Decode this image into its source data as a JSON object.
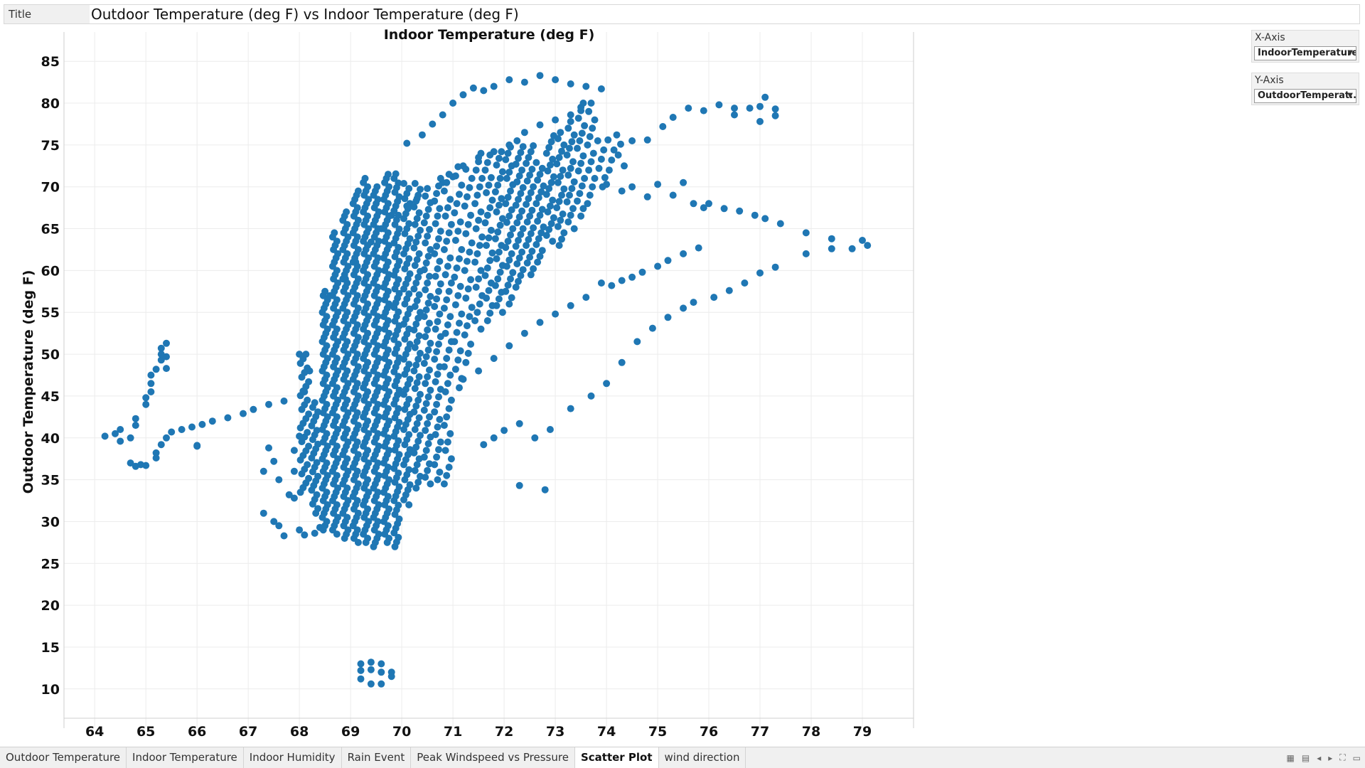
{
  "title_bar": {
    "tag": "Title",
    "worksheet_title": "Outdoor Temperature (deg F) vs Indoor Temperature (deg F)"
  },
  "controls": {
    "x_axis": {
      "label": "X-Axis",
      "value": "IndoorTemperature"
    },
    "y_axis": {
      "label": "Y-Axis",
      "value": "OutdoorTemperat..."
    }
  },
  "tabs": [
    {
      "label": "Outdoor Temperature",
      "active": false
    },
    {
      "label": "Indoor Temperature",
      "active": false
    },
    {
      "label": "Indoor Humidity",
      "active": false
    },
    {
      "label": "Rain Event",
      "active": false
    },
    {
      "label": "Peak Windspeed vs Pressure",
      "active": false
    },
    {
      "label": "Scatter Plot",
      "active": true
    },
    {
      "label": "wind direction",
      "active": false
    }
  ],
  "tab_controls": [
    "grid-view-icon",
    "list-view-icon",
    "prev-icon",
    "next-icon",
    "fullscreen-icon",
    "share-icon"
  ],
  "colors": {
    "point": "#1f77b4",
    "grid": "#ececec",
    "axis": "#cfcfcf"
  },
  "chart_data": {
    "type": "scatter",
    "xlabel": "Indoor Temperature (deg F)",
    "ylabel": "Outdoor Temperature (deg F)",
    "xlim": [
      63.4,
      80.0
    ],
    "ylim": [
      6.5,
      88.5
    ],
    "x_ticks": [
      64,
      65,
      66,
      67,
      68,
      69,
      70,
      71,
      72,
      73,
      74,
      75,
      76,
      77,
      78,
      79
    ],
    "y_ticks": [
      10,
      15,
      20,
      25,
      30,
      35,
      40,
      45,
      50,
      55,
      60,
      65,
      70,
      75,
      80,
      85
    ],
    "grid": true,
    "series": [
      {
        "points": [
          [
            64.2,
            40.2
          ],
          [
            64.4,
            40.5
          ],
          [
            64.5,
            41.0
          ],
          [
            64.5,
            39.6
          ],
          [
            64.7,
            40.0
          ],
          [
            64.8,
            41.5
          ],
          [
            64.8,
            42.3
          ],
          [
            64.7,
            37.0
          ],
          [
            64.8,
            36.6
          ],
          [
            64.9,
            36.8
          ],
          [
            65.0,
            36.7
          ],
          [
            65.2,
            37.6
          ],
          [
            65.2,
            38.2
          ],
          [
            65.0,
            44.0
          ],
          [
            65.0,
            44.8
          ],
          [
            65.1,
            45.5
          ],
          [
            65.1,
            46.5
          ],
          [
            65.1,
            47.5
          ],
          [
            65.2,
            48.2
          ],
          [
            65.3,
            49.3
          ],
          [
            65.3,
            50.0
          ],
          [
            65.3,
            50.7
          ],
          [
            65.4,
            51.3
          ],
          [
            65.4,
            49.7
          ],
          [
            65.4,
            48.3
          ],
          [
            65.3,
            39.2
          ],
          [
            65.4,
            40.0
          ],
          [
            65.5,
            40.7
          ],
          [
            65.7,
            41.0
          ],
          [
            65.9,
            41.3
          ],
          [
            66.1,
            41.6
          ],
          [
            66.3,
            42.0
          ],
          [
            66.6,
            42.4
          ],
          [
            66.9,
            42.9
          ],
          [
            67.1,
            43.4
          ],
          [
            67.4,
            44.0
          ],
          [
            67.7,
            44.4
          ],
          [
            66.0,
            39.0
          ],
          [
            67.3,
            31.0
          ],
          [
            67.3,
            36.0
          ],
          [
            67.4,
            38.8
          ],
          [
            67.5,
            37.2
          ],
          [
            67.6,
            35.0
          ],
          [
            67.5,
            30.0
          ],
          [
            67.6,
            29.5
          ],
          [
            67.7,
            28.3
          ],
          [
            67.8,
            33.2
          ],
          [
            67.9,
            36.0
          ],
          [
            67.9,
            38.5
          ],
          [
            68.0,
            40.2
          ],
          [
            68.0,
            29.0
          ],
          [
            68.1,
            28.4
          ],
          [
            68.1,
            45.5
          ],
          [
            68.0,
            50.0
          ],
          [
            68.2,
            48.0
          ],
          [
            67.9,
            32.8
          ],
          [
            68.3,
            28.6
          ],
          [
            68.4,
            29.3
          ],
          [
            72.3,
            34.3
          ],
          [
            72.8,
            33.8
          ],
          [
            69.2,
            13.0
          ],
          [
            69.2,
            12.2
          ],
          [
            69.2,
            11.2
          ],
          [
            69.4,
            13.2
          ],
          [
            69.4,
            12.3
          ],
          [
            69.4,
            10.6
          ],
          [
            69.6,
            13.0
          ],
          [
            69.6,
            12.0
          ],
          [
            69.6,
            10.6
          ],
          [
            69.8,
            12.0
          ],
          [
            69.8,
            11.5
          ],
          [
            66.0,
            39.1
          ],
          [
            70.1,
            75.2
          ],
          [
            70.4,
            76.2
          ],
          [
            70.6,
            77.5
          ],
          [
            70.8,
            78.6
          ],
          [
            71.0,
            80.0
          ],
          [
            71.2,
            81.0
          ],
          [
            71.4,
            81.8
          ],
          [
            71.6,
            81.5
          ],
          [
            71.8,
            82.0
          ],
          [
            72.1,
            82.8
          ],
          [
            72.4,
            82.5
          ],
          [
            72.7,
            83.3
          ],
          [
            73.0,
            82.8
          ],
          [
            73.3,
            82.3
          ],
          [
            73.6,
            82.0
          ],
          [
            73.9,
            81.7
          ],
          [
            74.2,
            76.2
          ],
          [
            74.5,
            75.5
          ],
          [
            74.8,
            75.6
          ],
          [
            75.1,
            77.2
          ],
          [
            75.3,
            78.3
          ],
          [
            75.6,
            79.4
          ],
          [
            75.9,
            79.1
          ],
          [
            76.2,
            79.8
          ],
          [
            76.5,
            79.4
          ],
          [
            76.8,
            79.4
          ],
          [
            77.1,
            80.7
          ],
          [
            77.3,
            79.3
          ],
          [
            77.3,
            78.5
          ],
          [
            77.0,
            77.8
          ],
          [
            77.0,
            79.6
          ],
          [
            76.5,
            78.6
          ],
          [
            74.0,
            70.3
          ],
          [
            74.3,
            69.5
          ],
          [
            74.5,
            70.0
          ],
          [
            74.8,
            68.8
          ],
          [
            75.0,
            70.3
          ],
          [
            75.3,
            69.0
          ],
          [
            75.5,
            70.5
          ],
          [
            75.7,
            68.0
          ],
          [
            75.9,
            67.5
          ],
          [
            76.0,
            68.0
          ],
          [
            76.3,
            67.4
          ],
          [
            76.6,
            67.1
          ],
          [
            76.9,
            66.6
          ],
          [
            77.1,
            66.2
          ],
          [
            77.4,
            65.6
          ],
          [
            77.9,
            64.5
          ],
          [
            77.9,
            62.0
          ],
          [
            78.4,
            63.8
          ],
          [
            78.4,
            62.6
          ],
          [
            78.8,
            62.6
          ],
          [
            79.0,
            63.6
          ],
          [
            79.1,
            63.0
          ],
          [
            73.9,
            58.5
          ],
          [
            74.1,
            58.2
          ],
          [
            74.3,
            58.8
          ],
          [
            74.5,
            59.2
          ],
          [
            74.7,
            59.8
          ],
          [
            75.0,
            60.5
          ],
          [
            75.2,
            61.2
          ],
          [
            75.5,
            62.0
          ],
          [
            75.8,
            62.7
          ],
          [
            76.1,
            56.8
          ],
          [
            76.4,
            57.6
          ],
          [
            76.7,
            58.5
          ],
          [
            77.0,
            59.7
          ],
          [
            77.3,
            60.4
          ],
          [
            72.6,
            40.0
          ],
          [
            72.9,
            41.0
          ],
          [
            73.3,
            43.5
          ],
          [
            73.7,
            45.0
          ],
          [
            74.0,
            46.5
          ],
          [
            74.3,
            49.0
          ],
          [
            74.6,
            51.5
          ],
          [
            74.9,
            53.1
          ],
          [
            75.2,
            54.4
          ],
          [
            75.5,
            55.5
          ],
          [
            75.7,
            56.2
          ],
          [
            71.2,
            47.0
          ],
          [
            71.5,
            48.0
          ],
          [
            71.8,
            49.5
          ],
          [
            72.1,
            51.0
          ],
          [
            72.4,
            52.5
          ],
          [
            72.7,
            53.8
          ],
          [
            73.0,
            54.8
          ],
          [
            73.3,
            55.8
          ],
          [
            73.6,
            56.8
          ],
          [
            71.6,
            39.2
          ],
          [
            71.8,
            40.0
          ],
          [
            72.0,
            40.9
          ],
          [
            72.3,
            41.7
          ],
          [
            68.6,
            57.0
          ],
          [
            68.9,
            59.0
          ],
          [
            69.1,
            61.0
          ],
          [
            69.4,
            63.4
          ],
          [
            69.6,
            65.0
          ],
          [
            69.8,
            66.6
          ],
          [
            70.1,
            67.7
          ],
          [
            70.3,
            68.6
          ],
          [
            70.5,
            69.8
          ],
          [
            70.8,
            70.5
          ],
          [
            71.0,
            71.2
          ],
          [
            71.2,
            72.5
          ],
          [
            71.5,
            73.5
          ],
          [
            71.8,
            74.2
          ],
          [
            72.1,
            75.0
          ],
          [
            72.4,
            76.5
          ],
          [
            72.7,
            77.4
          ],
          [
            73.0,
            78.0
          ],
          [
            73.3,
            78.6
          ],
          [
            73.5,
            79.5
          ]
        ],
        "clusters": [
          {
            "x": 68.1,
            "y_from": 33.5,
            "y_to": 50.0,
            "step": 0.55,
            "jitter": 0.08
          },
          {
            "x": 68.3,
            "y_from": 31.0,
            "y_to": 44.5,
            "step": 0.55,
            "jitter": 0.06
          },
          {
            "x": 68.5,
            "y_from": 29.0,
            "y_to": 57.5,
            "step": 0.5,
            "jitter": 0.05
          },
          {
            "x": 68.7,
            "y_from": 28.5,
            "y_to": 64.5,
            "step": 0.5,
            "jitter": 0.05
          },
          {
            "x": 68.9,
            "y_from": 28.0,
            "y_to": 67.0,
            "step": 0.5,
            "jitter": 0.05
          },
          {
            "x": 69.1,
            "y_from": 27.5,
            "y_to": 69.5,
            "step": 0.5,
            "jitter": 0.05
          },
          {
            "x": 69.3,
            "y_from": 27.5,
            "y_to": 71.0,
            "step": 0.5,
            "jitter": 0.05
          },
          {
            "x": 69.5,
            "y_from": 27.0,
            "y_to": 70.0,
            "step": 0.5,
            "jitter": 0.05
          },
          {
            "x": 69.7,
            "y_from": 27.5,
            "y_to": 71.5,
            "step": 0.5,
            "jitter": 0.05
          },
          {
            "x": 69.9,
            "y_from": 27.0,
            "y_to": 72.0,
            "step": 0.55,
            "jitter": 0.05
          },
          {
            "x": 70.1,
            "y_from": 32.0,
            "y_to": 70.5,
            "step": 0.6,
            "jitter": 0.06
          },
          {
            "x": 70.3,
            "y_from": 34.0,
            "y_to": 70.5,
            "step": 0.7,
            "jitter": 0.06
          },
          {
            "x": 70.5,
            "y_from": 34.5,
            "y_to": 69.5,
            "step": 0.8,
            "jitter": 0.06
          },
          {
            "x": 70.7,
            "y_from": 35.0,
            "y_to": 71.0,
            "step": 0.9,
            "jitter": 0.06
          },
          {
            "x": 70.9,
            "y_from": 34.5,
            "y_to": 71.5,
            "step": 1.0,
            "jitter": 0.07
          },
          {
            "x": 71.1,
            "y_from": 46.0,
            "y_to": 73.0,
            "step": 1.1,
            "jitter": 0.07
          },
          {
            "x": 71.3,
            "y_from": 49.0,
            "y_to": 72.5,
            "step": 1.1,
            "jitter": 0.07
          },
          {
            "x": 71.5,
            "y_from": 53.0,
            "y_to": 74.0,
            "step": 1.0,
            "jitter": 0.07
          },
          {
            "x": 71.7,
            "y_from": 54.0,
            "y_to": 74.0,
            "step": 0.9,
            "jitter": 0.07
          },
          {
            "x": 71.9,
            "y_from": 55.0,
            "y_to": 74.5,
            "step": 0.8,
            "jitter": 0.07
          },
          {
            "x": 72.1,
            "y_from": 56.0,
            "y_to": 75.0,
            "step": 0.75,
            "jitter": 0.07
          },
          {
            "x": 72.3,
            "y_from": 58.0,
            "y_to": 76.0,
            "step": 0.7,
            "jitter": 0.07
          },
          {
            "x": 72.5,
            "y_from": 59.5,
            "y_to": 75.5,
            "step": 0.7,
            "jitter": 0.07
          },
          {
            "x": 72.7,
            "y_from": 61.0,
            "y_to": 73.0,
            "step": 0.7,
            "jitter": 0.07
          },
          {
            "x": 72.9,
            "y_from": 63.5,
            "y_to": 76.5,
            "step": 0.7,
            "jitter": 0.07
          },
          {
            "x": 73.1,
            "y_from": 63.0,
            "y_to": 77.0,
            "step": 0.75,
            "jitter": 0.07
          },
          {
            "x": 73.3,
            "y_from": 65.0,
            "y_to": 78.5,
            "step": 0.8,
            "jitter": 0.07
          },
          {
            "x": 73.5,
            "y_from": 66.5,
            "y_to": 80.0,
            "step": 0.9,
            "jitter": 0.07
          },
          {
            "x": 73.7,
            "y_from": 68.0,
            "y_to": 80.0,
            "step": 1.0,
            "jitter": 0.07
          },
          {
            "x": 73.9,
            "y_from": 70.0,
            "y_to": 76.0,
            "step": 1.1,
            "jitter": 0.07
          },
          {
            "x": 74.1,
            "y_from": 72.0,
            "y_to": 76.5,
            "step": 1.2,
            "jitter": 0.07
          },
          {
            "x": 74.3,
            "y_from": 72.5,
            "y_to": 76.0,
            "step": 1.3,
            "jitter": 0.07
          }
        ]
      }
    ]
  }
}
